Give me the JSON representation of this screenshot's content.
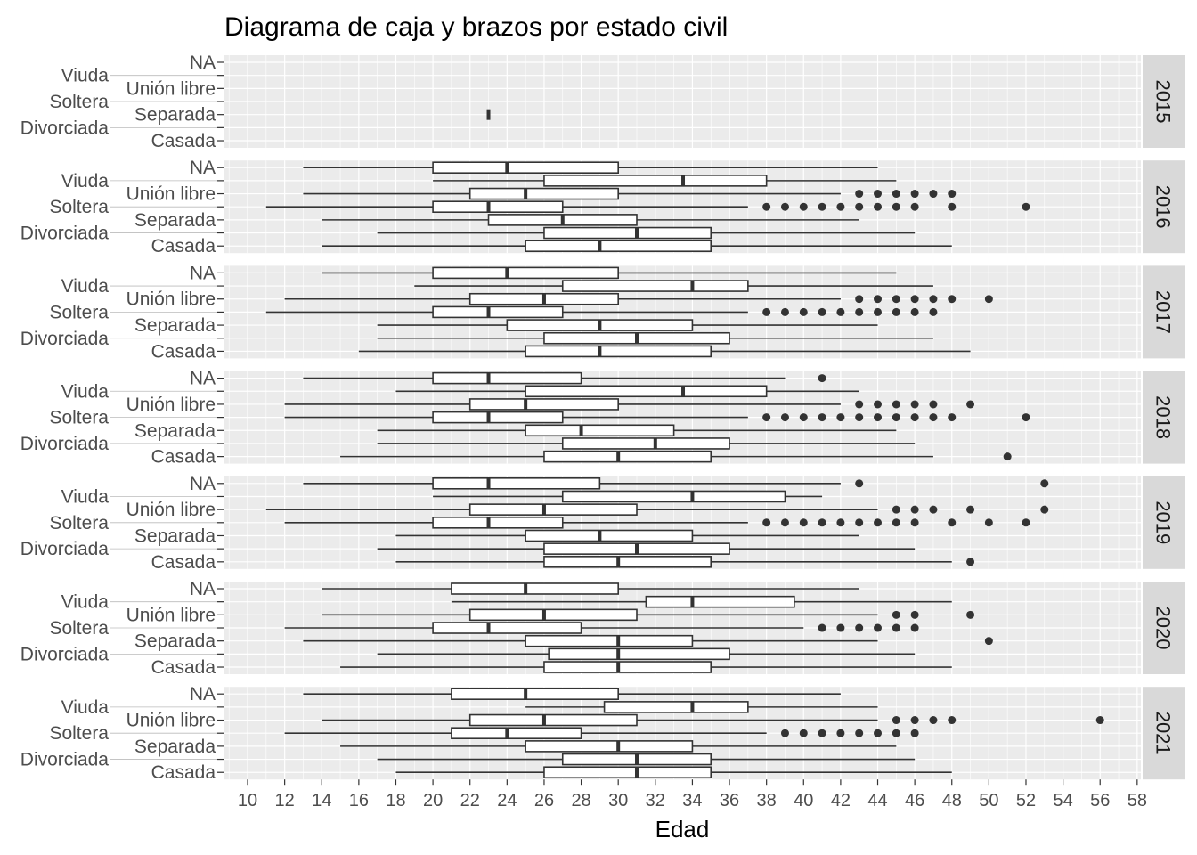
{
  "chart_data": {
    "type": "boxplot",
    "orientation": "horizontal",
    "title": "Diagrama de caja y brazos por estado civil",
    "xlabel": "Edad",
    "ylabel": "",
    "xlim": [
      8.75,
      58.2
    ],
    "x_ticks": [
      10,
      12,
      14,
      16,
      18,
      20,
      22,
      24,
      26,
      28,
      30,
      32,
      34,
      36,
      38,
      40,
      42,
      44,
      46,
      48,
      50,
      52,
      54,
      56,
      58
    ],
    "categories": [
      "NA",
      "Viuda",
      "Unión libre",
      "Soltera",
      "Separada",
      "Divorciada",
      "Casada"
    ],
    "grid": true,
    "facet_by": "year",
    "panels": [
      {
        "year": "2015",
        "boxes": [
          {
            "category": "Separada",
            "min": 23,
            "q1": 23,
            "median": 23,
            "q3": 23,
            "max": 23,
            "outliers": []
          }
        ]
      },
      {
        "year": "2016",
        "boxes": [
          {
            "category": "NA",
            "min": 13,
            "q1": 20,
            "median": 24,
            "q3": 30,
            "max": 44,
            "outliers": []
          },
          {
            "category": "Viuda",
            "min": 20,
            "q1": 26,
            "median": 33.5,
            "q3": 38,
            "max": 45,
            "outliers": []
          },
          {
            "category": "Unión libre",
            "min": 13,
            "q1": 22,
            "median": 25,
            "q3": 30,
            "max": 42,
            "outliers": [
              43,
              44,
              45,
              46,
              47,
              48
            ]
          },
          {
            "category": "Soltera",
            "min": 11,
            "q1": 20,
            "median": 23,
            "q3": 27,
            "max": 37,
            "outliers": [
              38,
              39,
              40,
              41,
              42,
              43,
              44,
              45,
              46,
              48,
              52
            ]
          },
          {
            "category": "Separada",
            "min": 14,
            "q1": 23,
            "median": 27,
            "q3": 31,
            "max": 43,
            "outliers": []
          },
          {
            "category": "Divorciada",
            "min": 17,
            "q1": 26,
            "median": 31,
            "q3": 35,
            "max": 46,
            "outliers": []
          },
          {
            "category": "Casada",
            "min": 14,
            "q1": 25,
            "median": 29,
            "q3": 35,
            "max": 48,
            "outliers": []
          }
        ]
      },
      {
        "year": "2017",
        "boxes": [
          {
            "category": "NA",
            "min": 14,
            "q1": 20,
            "median": 24,
            "q3": 30,
            "max": 45,
            "outliers": []
          },
          {
            "category": "Viuda",
            "min": 19,
            "q1": 27,
            "median": 34,
            "q3": 37,
            "max": 47,
            "outliers": []
          },
          {
            "category": "Unión libre",
            "min": 12,
            "q1": 22,
            "median": 26,
            "q3": 30,
            "max": 42,
            "outliers": [
              43,
              44,
              45,
              46,
              47,
              48,
              50
            ]
          },
          {
            "category": "Soltera",
            "min": 11,
            "q1": 20,
            "median": 23,
            "q3": 27,
            "max": 37,
            "outliers": [
              38,
              39,
              40,
              41,
              42,
              43,
              44,
              45,
              46,
              47
            ]
          },
          {
            "category": "Separada",
            "min": 17,
            "q1": 24,
            "median": 29,
            "q3": 34,
            "max": 44,
            "outliers": []
          },
          {
            "category": "Divorciada",
            "min": 17,
            "q1": 26,
            "median": 31,
            "q3": 36,
            "max": 47,
            "outliers": []
          },
          {
            "category": "Casada",
            "min": 16,
            "q1": 25,
            "median": 29,
            "q3": 35,
            "max": 49,
            "outliers": []
          }
        ]
      },
      {
        "year": "2018",
        "boxes": [
          {
            "category": "NA",
            "min": 13,
            "q1": 20,
            "median": 23,
            "q3": 28,
            "max": 39,
            "outliers": [
              41
            ]
          },
          {
            "category": "Viuda",
            "min": 18,
            "q1": 25,
            "median": 33.5,
            "q3": 38,
            "max": 43,
            "outliers": []
          },
          {
            "category": "Unión libre",
            "min": 12,
            "q1": 22,
            "median": 25,
            "q3": 30,
            "max": 42,
            "outliers": [
              43,
              44,
              45,
              46,
              47,
              49
            ]
          },
          {
            "category": "Soltera",
            "min": 12,
            "q1": 20,
            "median": 23,
            "q3": 27,
            "max": 37,
            "outliers": [
              38,
              39,
              40,
              41,
              42,
              43,
              44,
              45,
              46,
              47,
              48,
              52
            ]
          },
          {
            "category": "Separada",
            "min": 17,
            "q1": 25,
            "median": 28,
            "q3": 33,
            "max": 45,
            "outliers": []
          },
          {
            "category": "Divorciada",
            "min": 17,
            "q1": 27,
            "median": 32,
            "q3": 36,
            "max": 46,
            "outliers": []
          },
          {
            "category": "Casada",
            "min": 15,
            "q1": 26,
            "median": 30,
            "q3": 35,
            "max": 47,
            "outliers": [
              51
            ]
          }
        ]
      },
      {
        "year": "2019",
        "boxes": [
          {
            "category": "NA",
            "min": 13,
            "q1": 20,
            "median": 23,
            "q3": 29,
            "max": 42,
            "outliers": [
              43,
              53
            ]
          },
          {
            "category": "Viuda",
            "min": 20,
            "q1": 27,
            "median": 34,
            "q3": 39,
            "max": 41,
            "outliers": []
          },
          {
            "category": "Unión libre",
            "min": 11,
            "q1": 22,
            "median": 26,
            "q3": 31,
            "max": 44,
            "outliers": [
              45,
              46,
              47,
              49,
              53
            ]
          },
          {
            "category": "Soltera",
            "min": 12,
            "q1": 20,
            "median": 23,
            "q3": 27,
            "max": 37,
            "outliers": [
              38,
              39,
              40,
              41,
              42,
              43,
              44,
              45,
              46,
              48,
              50,
              52
            ]
          },
          {
            "category": "Separada",
            "min": 18,
            "q1": 25,
            "median": 29,
            "q3": 34,
            "max": 43,
            "outliers": []
          },
          {
            "category": "Divorciada",
            "min": 17,
            "q1": 26,
            "median": 31,
            "q3": 36,
            "max": 46,
            "outliers": []
          },
          {
            "category": "Casada",
            "min": 18,
            "q1": 26,
            "median": 30,
            "q3": 35,
            "max": 48,
            "outliers": [
              49
            ]
          }
        ]
      },
      {
        "year": "2020",
        "boxes": [
          {
            "category": "NA",
            "min": 14,
            "q1": 21,
            "median": 25,
            "q3": 30,
            "max": 43,
            "outliers": []
          },
          {
            "category": "Viuda",
            "min": 21,
            "q1": 31.5,
            "median": 34,
            "q3": 39.5,
            "max": 48,
            "outliers": []
          },
          {
            "category": "Unión libre",
            "min": 14,
            "q1": 22,
            "median": 26,
            "q3": 31,
            "max": 44,
            "outliers": [
              45,
              46,
              49
            ]
          },
          {
            "category": "Soltera",
            "min": 12,
            "q1": 20,
            "median": 23,
            "q3": 28,
            "max": 40,
            "outliers": [
              41,
              42,
              43,
              44,
              45,
              46
            ]
          },
          {
            "category": "Separada",
            "min": 13,
            "q1": 25,
            "median": 30,
            "q3": 34,
            "max": 44,
            "outliers": [
              50
            ]
          },
          {
            "category": "Divorciada",
            "min": 17,
            "q1": 26.25,
            "median": 30,
            "q3": 36,
            "max": 46,
            "outliers": []
          },
          {
            "category": "Casada",
            "min": 15,
            "q1": 26,
            "median": 30,
            "q3": 35,
            "max": 48,
            "outliers": []
          }
        ]
      },
      {
        "year": "2021",
        "boxes": [
          {
            "category": "NA",
            "min": 13,
            "q1": 21,
            "median": 25,
            "q3": 30,
            "max": 42,
            "outliers": []
          },
          {
            "category": "Viuda",
            "min": 25,
            "q1": 29.25,
            "median": 34,
            "q3": 37,
            "max": 44,
            "outliers": []
          },
          {
            "category": "Unión libre",
            "min": 14,
            "q1": 22,
            "median": 26,
            "q3": 31,
            "max": 44,
            "outliers": [
              45,
              46,
              47,
              48,
              56
            ]
          },
          {
            "category": "Soltera",
            "min": 12,
            "q1": 21,
            "median": 24,
            "q3": 28,
            "max": 38,
            "outliers": [
              39,
              40,
              41,
              42,
              43,
              44,
              45,
              46
            ]
          },
          {
            "category": "Separada",
            "min": 15,
            "q1": 25,
            "median": 30,
            "q3": 34,
            "max": 45,
            "outliers": []
          },
          {
            "category": "Divorciada",
            "min": 17,
            "q1": 27,
            "median": 31,
            "q3": 35,
            "max": 46,
            "outliers": []
          },
          {
            "category": "Casada",
            "min": 18,
            "q1": 26,
            "median": 31,
            "q3": 35,
            "max": 48,
            "outliers": []
          }
        ]
      }
    ]
  }
}
